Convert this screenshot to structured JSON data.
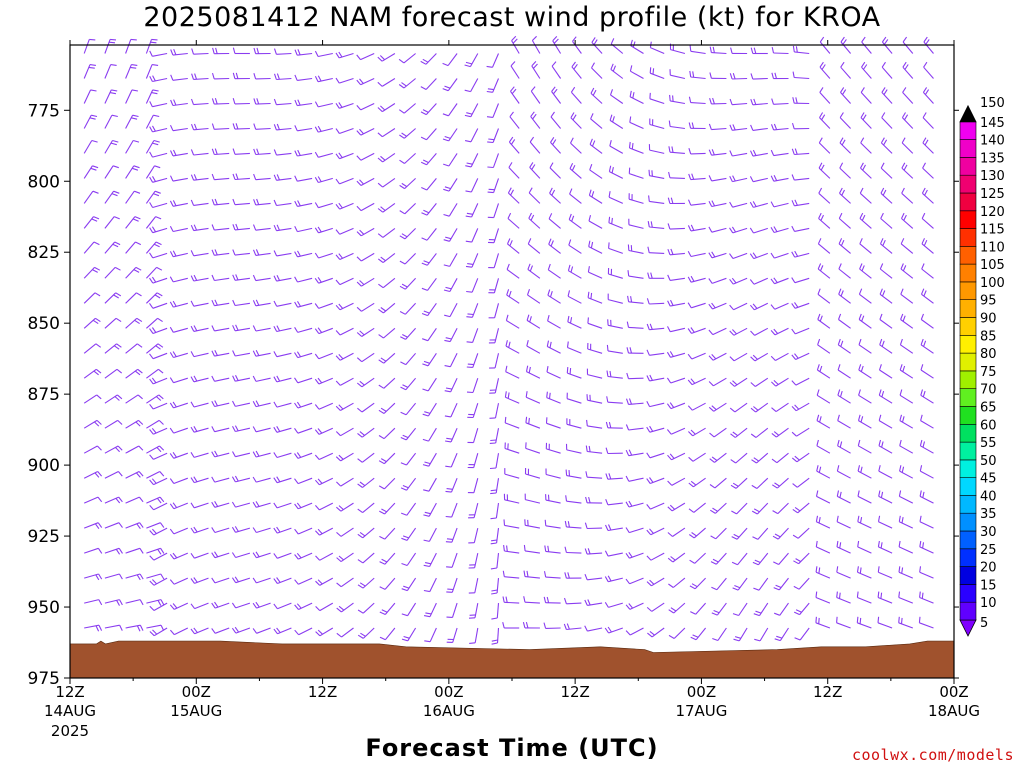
{
  "title": "2025081412 NAM forecast wind profile (kt) for KROA",
  "xlabel": "Forecast Time (UTC)",
  "credit": "coolwx.com/models",
  "chart_data": {
    "type": "wind-barb time-height",
    "y_ticks": [
      775,
      800,
      825,
      850,
      875,
      900,
      925,
      950,
      975
    ],
    "ylim": [
      752,
      975
    ],
    "y_inverted": true,
    "x_ticks": [
      {
        "label": "12Z",
        "date": "14AUG",
        "year": "2025"
      },
      {
        "label": "00Z",
        "date": "15AUG",
        "year": ""
      },
      {
        "label": "12Z",
        "date": "",
        "year": ""
      },
      {
        "label": "00Z",
        "date": "16AUG",
        "year": ""
      },
      {
        "label": "12Z",
        "date": "",
        "year": ""
      },
      {
        "label": "00Z",
        "date": "17AUG",
        "year": ""
      },
      {
        "label": "12Z",
        "date": "",
        "year": ""
      },
      {
        "label": "00Z",
        "date": "18AUG",
        "year": ""
      }
    ],
    "forecast_hours": [
      0,
      84
    ],
    "terrain_color": "#a0522d",
    "barb_color": "#8a3cf0",
    "colorbar": {
      "labels": [
        5,
        10,
        15,
        20,
        25,
        30,
        35,
        40,
        45,
        50,
        55,
        60,
        65,
        70,
        75,
        80,
        85,
        90,
        95,
        100,
        105,
        110,
        115,
        120,
        125,
        130,
        135,
        140,
        145,
        150
      ],
      "colors": [
        "#8000ff",
        "#6000ff",
        "#2a00ff",
        "#0000e0",
        "#0030ff",
        "#0060ff",
        "#0090ff",
        "#00b8ff",
        "#00d8ff",
        "#00f0e0",
        "#00f0a0",
        "#00e060",
        "#20e020",
        "#60f020",
        "#a0f000",
        "#e0f000",
        "#fff000",
        "#ffd000",
        "#ffb000",
        "#ff9800",
        "#ff8000",
        "#ff6000",
        "#ff3000",
        "#ff0000",
        "#f00040",
        "#f00070",
        "#f000a0",
        "#f000c8",
        "#f000f0",
        "#000000"
      ]
    }
  }
}
